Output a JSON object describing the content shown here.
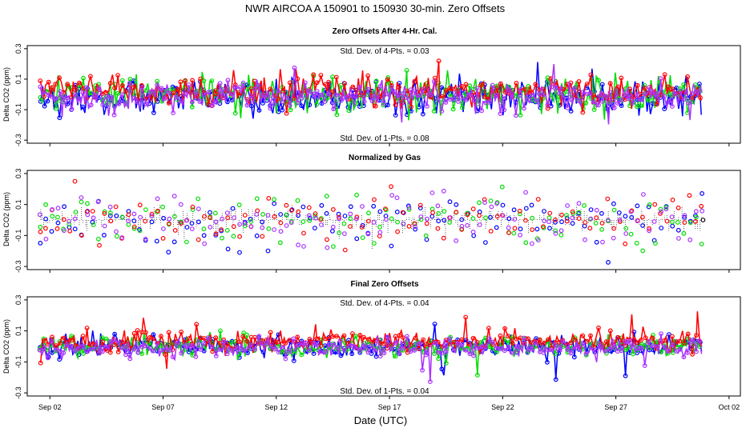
{
  "chart_data": {
    "type": "line",
    "title": "NWR   AIRCOA A   150901 to 150930   30-min. Zero Offsets",
    "xlabel": "Date (UTC)",
    "x_range_days": [
      0,
      31.5
    ],
    "x_ticks": [
      {
        "day": 1,
        "label": "Sep 02"
      },
      {
        "day": 6,
        "label": "Sep 07"
      },
      {
        "day": 11,
        "label": "Sep 12"
      },
      {
        "day": 16,
        "label": "Sep 17"
      },
      {
        "day": 21,
        "label": "Sep 22"
      },
      {
        "day": 26,
        "label": "Sep 27"
      },
      {
        "day": 31,
        "label": "Oct 02"
      }
    ],
    "data_day_range": [
      0.55,
      29.85
    ],
    "series_colors": {
      "gas1": "#0000ff",
      "gas2": "#00dd00",
      "gas3": "#ff0000",
      "gas4": "#aa33ff",
      "normalized_reference": "#000000"
    },
    "panels": [
      {
        "title": "Zero Offsets After 4-Hr. Cal.",
        "ylabel": "Delta CO2 (ppm)",
        "ylim": [
          -0.32,
          0.32
        ],
        "yticks": [
          0.3,
          0.1,
          -0.1,
          -0.3
        ],
        "ytick_labels": [
          "0.3",
          "0.1",
          "-0.1",
          "-0.3"
        ],
        "annotation_top": "Std. Dev. of 4-Pts. = 0.03",
        "annotation_bottom": "Std. Dev. of 1-Pts. = 0.08",
        "series": [
          {
            "name": "gas1",
            "color": "#0000ff",
            "offset_mean": -0.02,
            "noise_sd": 0.055,
            "style": "line-points"
          },
          {
            "name": "gas2",
            "color": "#00dd00",
            "offset_mean": 0.0,
            "noise_sd": 0.055,
            "style": "line-points"
          },
          {
            "name": "gas3",
            "color": "#ff0000",
            "offset_mean": 0.03,
            "noise_sd": 0.05,
            "style": "line-points"
          },
          {
            "name": "gas4",
            "color": "#aa33ff",
            "offset_mean": -0.02,
            "noise_sd": 0.045,
            "style": "line-points"
          }
        ]
      },
      {
        "title": "Normalized by Gas",
        "ylabel": "Delta CO2 (ppm)",
        "ylim": [
          -0.32,
          0.32
        ],
        "yticks": [
          0.3,
          0.1,
          -0.1,
          -0.3
        ],
        "ytick_labels": [
          "0.3",
          "0.1",
          "-0.1",
          "-0.3"
        ],
        "annotation_top": "",
        "annotation_bottom": "",
        "series": [
          {
            "name": "normalized_reference",
            "color": "#000000",
            "offset_mean": 0.0,
            "noise_sd": 0.04,
            "style": "dotted-band"
          },
          {
            "name": "gas1",
            "color": "#0000ff",
            "offset_mean": 0.0,
            "noise_sd": 0.08,
            "style": "points"
          },
          {
            "name": "gas2",
            "color": "#00dd00",
            "offset_mean": 0.0,
            "noise_sd": 0.08,
            "style": "points"
          },
          {
            "name": "gas3",
            "color": "#ff0000",
            "offset_mean": 0.0,
            "noise_sd": 0.08,
            "style": "points"
          },
          {
            "name": "gas4",
            "color": "#aa33ff",
            "offset_mean": 0.0,
            "noise_sd": 0.08,
            "style": "points"
          }
        ]
      },
      {
        "title": "Final Zero Offsets",
        "ylabel": "Delta CO2 (ppm)",
        "ylim": [
          -0.32,
          0.32
        ],
        "yticks": [
          0.3,
          0.1,
          -0.1,
          -0.3
        ],
        "ytick_labels": [
          "0.3",
          "0.1",
          "-0.1",
          "-0.3"
        ],
        "annotation_top": "Std. Dev. of 4-Pts. = 0.04",
        "annotation_bottom": "Std. Dev. of 1-Pts. = 0.04",
        "series": [
          {
            "name": "gas1",
            "color": "#0000ff",
            "offset_mean": 0.0,
            "noise_sd": 0.035,
            "style": "line-points"
          },
          {
            "name": "gas2",
            "color": "#00dd00",
            "offset_mean": 0.0,
            "noise_sd": 0.035,
            "style": "line-points"
          },
          {
            "name": "gas3",
            "color": "#ff0000",
            "offset_mean": 0.035,
            "noise_sd": 0.035,
            "style": "line-points"
          },
          {
            "name": "gas4",
            "color": "#aa33ff",
            "offset_mean": -0.01,
            "noise_sd": 0.03,
            "style": "line-points"
          }
        ]
      }
    ]
  }
}
